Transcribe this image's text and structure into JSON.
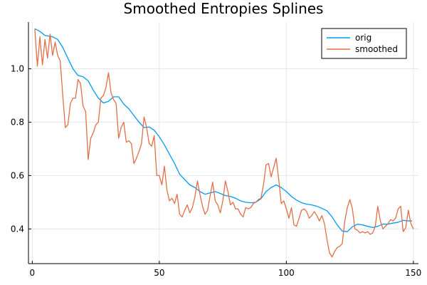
{
  "chart_data": {
    "type": "line",
    "title": "Smoothed Entropies Splines",
    "xlabel": "",
    "ylabel": "",
    "xlim": [
      -1.5,
      152
    ],
    "ylim": [
      0.27,
      1.175
    ],
    "xticks": [
      0,
      50,
      100,
      150
    ],
    "yticks": [
      0.4,
      0.6,
      0.8,
      1.0
    ],
    "xtick_labels": [
      "0",
      "50",
      "100",
      "150"
    ],
    "ytick_labels": [
      "0.4",
      "0.6",
      "0.8",
      "1.0"
    ],
    "grid": true,
    "legend_position": "top-right",
    "series": [
      {
        "name": "orig",
        "color": "#009af9",
        "points": [
          [
            1,
            1.15
          ],
          [
            3,
            1.14
          ],
          [
            5,
            1.125
          ],
          [
            8,
            1.12
          ],
          [
            10,
            1.11
          ],
          [
            12,
            1.08
          ],
          [
            14,
            1.04
          ],
          [
            16,
            1.0
          ],
          [
            18,
            0.975
          ],
          [
            20,
            0.97
          ],
          [
            22,
            0.955
          ],
          [
            24,
            0.92
          ],
          [
            26,
            0.89
          ],
          [
            28,
            0.872
          ],
          [
            30,
            0.878
          ],
          [
            32,
            0.895
          ],
          [
            34,
            0.895
          ],
          [
            36,
            0.868
          ],
          [
            38,
            0.85
          ],
          [
            40,
            0.825
          ],
          [
            42,
            0.8
          ],
          [
            44,
            0.78
          ],
          [
            46,
            0.782
          ],
          [
            48,
            0.77
          ],
          [
            50,
            0.745
          ],
          [
            52,
            0.715
          ],
          [
            54,
            0.68
          ],
          [
            56,
            0.645
          ],
          [
            58,
            0.605
          ],
          [
            60,
            0.585
          ],
          [
            62,
            0.565
          ],
          [
            64,
            0.555
          ],
          [
            66,
            0.54
          ],
          [
            68,
            0.53
          ],
          [
            70,
            0.535
          ],
          [
            72,
            0.54
          ],
          [
            74,
            0.533
          ],
          [
            76,
            0.525
          ],
          [
            78,
            0.522
          ],
          [
            80,
            0.515
          ],
          [
            82,
            0.505
          ],
          [
            84,
            0.5
          ],
          [
            86,
            0.498
          ],
          [
            88,
            0.5
          ],
          [
            90,
            0.513
          ],
          [
            92,
            0.54
          ],
          [
            94,
            0.555
          ],
          [
            96,
            0.565
          ],
          [
            98,
            0.555
          ],
          [
            100,
            0.54
          ],
          [
            102,
            0.522
          ],
          [
            104,
            0.508
          ],
          [
            106,
            0.498
          ],
          [
            108,
            0.493
          ],
          [
            110,
            0.49
          ],
          [
            112,
            0.485
          ],
          [
            114,
            0.477
          ],
          [
            116,
            0.468
          ],
          [
            118,
            0.445
          ],
          [
            120,
            0.415
          ],
          [
            122,
            0.392
          ],
          [
            124,
            0.39
          ],
          [
            126,
            0.408
          ],
          [
            128,
            0.418
          ],
          [
            130,
            0.415
          ],
          [
            132,
            0.41
          ],
          [
            134,
            0.405
          ],
          [
            136,
            0.41
          ],
          [
            138,
            0.418
          ],
          [
            140,
            0.418
          ],
          [
            142,
            0.422
          ],
          [
            144,
            0.425
          ],
          [
            146,
            0.432
          ],
          [
            148,
            0.43
          ],
          [
            149.5,
            0.43
          ]
        ]
      },
      {
        "name": "smoothed",
        "color": "#e26f46",
        "points": [
          [
            1,
            1.15
          ],
          [
            2,
            1.01
          ],
          [
            3,
            1.12
          ],
          [
            4,
            1.015
          ],
          [
            5,
            1.11
          ],
          [
            6,
            1.04
          ],
          [
            7,
            1.13
          ],
          [
            8,
            1.05
          ],
          [
            9,
            1.1
          ],
          [
            10,
            1.05
          ],
          [
            11,
            1.03
          ],
          [
            12,
            0.9
          ],
          [
            13,
            0.78
          ],
          [
            14,
            0.79
          ],
          [
            15,
            0.87
          ],
          [
            16,
            0.89
          ],
          [
            17,
            0.89
          ],
          [
            18,
            0.96
          ],
          [
            19,
            0.945
          ],
          [
            20,
            0.86
          ],
          [
            21,
            0.84
          ],
          [
            22,
            0.66
          ],
          [
            23,
            0.74
          ],
          [
            24,
            0.76
          ],
          [
            25,
            0.79
          ],
          [
            26,
            0.8
          ],
          [
            27,
            0.89
          ],
          [
            28,
            0.9
          ],
          [
            29,
            0.93
          ],
          [
            30,
            0.985
          ],
          [
            31,
            0.91
          ],
          [
            32,
            0.885
          ],
          [
            33,
            0.87
          ],
          [
            34,
            0.74
          ],
          [
            35,
            0.78
          ],
          [
            36,
            0.8
          ],
          [
            37,
            0.725
          ],
          [
            38,
            0.73
          ],
          [
            39,
            0.72
          ],
          [
            40,
            0.645
          ],
          [
            41,
            0.665
          ],
          [
            42,
            0.69
          ],
          [
            43,
            0.72
          ],
          [
            44,
            0.82
          ],
          [
            45,
            0.78
          ],
          [
            46,
            0.72
          ],
          [
            47,
            0.71
          ],
          [
            48,
            0.75
          ],
          [
            49,
            0.6
          ],
          [
            50,
            0.6
          ],
          [
            51,
            0.565
          ],
          [
            52,
            0.635
          ],
          [
            53,
            0.545
          ],
          [
            54,
            0.505
          ],
          [
            55,
            0.515
          ],
          [
            56,
            0.495
          ],
          [
            57,
            0.53
          ],
          [
            58,
            0.455
          ],
          [
            59,
            0.445
          ],
          [
            60,
            0.47
          ],
          [
            61,
            0.49
          ],
          [
            62,
            0.46
          ],
          [
            63,
            0.48
          ],
          [
            64,
            0.52
          ],
          [
            65,
            0.58
          ],
          [
            66,
            0.53
          ],
          [
            67,
            0.485
          ],
          [
            68,
            0.455
          ],
          [
            69,
            0.47
          ],
          [
            70,
            0.525
          ],
          [
            71,
            0.575
          ],
          [
            72,
            0.505
          ],
          [
            73,
            0.49
          ],
          [
            74,
            0.46
          ],
          [
            75,
            0.505
          ],
          [
            76,
            0.58
          ],
          [
            77,
            0.54
          ],
          [
            78,
            0.49
          ],
          [
            79,
            0.5
          ],
          [
            80,
            0.475
          ],
          [
            81,
            0.475
          ],
          [
            82,
            0.455
          ],
          [
            83,
            0.445
          ],
          [
            84,
            0.48
          ],
          [
            85,
            0.475
          ],
          [
            86,
            0.48
          ],
          [
            87,
            0.495
          ],
          [
            88,
            0.5
          ],
          [
            89,
            0.51
          ],
          [
            90,
            0.515
          ],
          [
            91,
            0.565
          ],
          [
            92,
            0.64
          ],
          [
            93,
            0.645
          ],
          [
            94,
            0.595
          ],
          [
            95,
            0.63
          ],
          [
            96,
            0.665
          ],
          [
            97,
            0.585
          ],
          [
            98,
            0.495
          ],
          [
            99,
            0.505
          ],
          [
            100,
            0.475
          ],
          [
            101,
            0.44
          ],
          [
            102,
            0.48
          ],
          [
            103,
            0.415
          ],
          [
            104,
            0.41
          ],
          [
            105,
            0.44
          ],
          [
            106,
            0.47
          ],
          [
            107,
            0.475
          ],
          [
            108,
            0.465
          ],
          [
            109,
            0.44
          ],
          [
            110,
            0.45
          ],
          [
            111,
            0.465
          ],
          [
            112,
            0.45
          ],
          [
            113,
            0.43
          ],
          [
            114,
            0.45
          ],
          [
            115,
            0.42
          ],
          [
            116,
            0.36
          ],
          [
            117,
            0.31
          ],
          [
            118,
            0.295
          ],
          [
            119,
            0.315
          ],
          [
            120,
            0.33
          ],
          [
            121,
            0.335
          ],
          [
            122,
            0.345
          ],
          [
            123,
            0.43
          ],
          [
            124,
            0.48
          ],
          [
            125,
            0.51
          ],
          [
            126,
            0.475
          ],
          [
            127,
            0.4
          ],
          [
            128,
            0.395
          ],
          [
            129,
            0.385
          ],
          [
            130,
            0.39
          ],
          [
            131,
            0.385
          ],
          [
            132,
            0.39
          ],
          [
            133,
            0.38
          ],
          [
            134,
            0.385
          ],
          [
            135,
            0.41
          ],
          [
            136,
            0.485
          ],
          [
            137,
            0.43
          ],
          [
            138,
            0.4
          ],
          [
            139,
            0.41
          ],
          [
            140,
            0.42
          ],
          [
            141,
            0.435
          ],
          [
            142,
            0.43
          ],
          [
            143,
            0.44
          ],
          [
            144,
            0.475
          ],
          [
            145,
            0.485
          ],
          [
            146,
            0.39
          ],
          [
            147,
            0.405
          ],
          [
            148,
            0.47
          ],
          [
            149,
            0.42
          ],
          [
            150,
            0.4
          ]
        ]
      }
    ]
  }
}
